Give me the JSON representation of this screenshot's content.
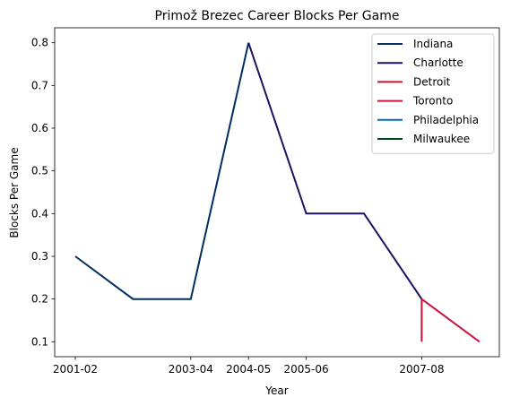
{
  "chart_data": {
    "type": "line",
    "title": "Primož Brezec Career Blocks Per Game",
    "xlabel": "Year",
    "ylabel": "Blocks Per Game",
    "seasons": [
      "2001-02",
      "2002-03",
      "2003-04",
      "2004-05",
      "2005-06",
      "2006-07",
      "2007-08",
      "2008-09"
    ],
    "x_tick_labels": [
      "2001-02",
      "2003-04",
      "2004-05",
      "2005-06",
      "2007-08"
    ],
    "x_tick_seasons": [
      "2001-02",
      "2003-04",
      "2004-05",
      "2005-06",
      "2007-08"
    ],
    "y_ticks": [
      0.1,
      0.2,
      0.3,
      0.4,
      0.5,
      0.6,
      0.7,
      0.8
    ],
    "y_tick_labels": [
      "0.1",
      "0.2",
      "0.3",
      "0.4",
      "0.5",
      "0.6",
      "0.7",
      "0.8"
    ],
    "ylim": [
      0.065,
      0.835
    ],
    "grid": false,
    "legend_position": "top-right",
    "series": [
      {
        "name": "Indiana",
        "color": "#002D62",
        "points": [
          [
            "2001-02",
            0.3
          ],
          [
            "2002-03",
            0.2
          ],
          [
            "2003-04",
            0.2
          ],
          [
            "2004-05",
            0.8
          ]
        ]
      },
      {
        "name": "Charlotte",
        "color": "#1D1160",
        "points": [
          [
            "2004-05",
            0.8
          ],
          [
            "2005-06",
            0.4
          ],
          [
            "2006-07",
            0.4
          ],
          [
            "2007-08",
            0.2
          ]
        ]
      },
      {
        "name": "Detroit",
        "color": "#C8102E",
        "points": [
          [
            "2007-08",
            0.2
          ],
          [
            "2007-08",
            0.1
          ]
        ]
      },
      {
        "name": "Toronto",
        "color": "#CE1141",
        "points": [
          [
            "2007-08",
            0.2
          ],
          [
            "2008-09",
            0.1
          ]
        ]
      },
      {
        "name": "Philadelphia",
        "color": "#006BB6",
        "points": []
      },
      {
        "name": "Milwaukee",
        "color": "#00471B",
        "points": []
      }
    ]
  }
}
